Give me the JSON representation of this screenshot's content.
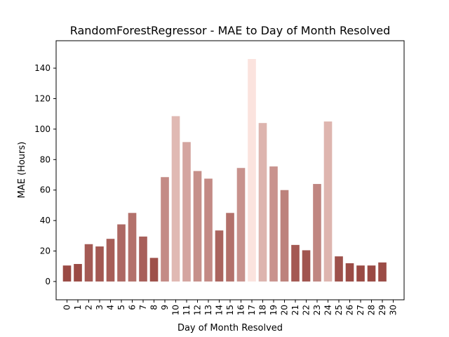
{
  "chart_data": {
    "type": "bar",
    "title": "RandomForestRegressor - MAE to Day of Month Resolved",
    "xlabel": "Day of Month Resolved",
    "ylabel": "MAE (Hours)",
    "categories": [
      "0",
      "1",
      "2",
      "3",
      "4",
      "5",
      "6",
      "7",
      "8",
      "9",
      "10",
      "11",
      "12",
      "13",
      "14",
      "15",
      "16",
      "17",
      "18",
      "19",
      "20",
      "21",
      "22",
      "23",
      "24",
      "25",
      "26",
      "27",
      "28",
      "29",
      "30"
    ],
    "values": [
      10.5,
      11.5,
      24.5,
      23,
      28,
      37.5,
      45,
      29.5,
      15.5,
      68.5,
      108.5,
      91.5,
      72.5,
      67.5,
      33.5,
      45,
      74.5,
      146,
      104,
      75.5,
      60,
      24,
      20.5,
      64,
      105,
      16.5,
      12,
      10.5,
      10.5,
      12.5,
      null
    ],
    "ylim": [
      -12,
      158
    ],
    "yticks": [
      0,
      20,
      40,
      60,
      80,
      100,
      120,
      140
    ],
    "grid": false,
    "colors": {
      "bar_low": "#9a4a44",
      "bar_high": "#fbe3de",
      "axis": "#000000"
    }
  }
}
